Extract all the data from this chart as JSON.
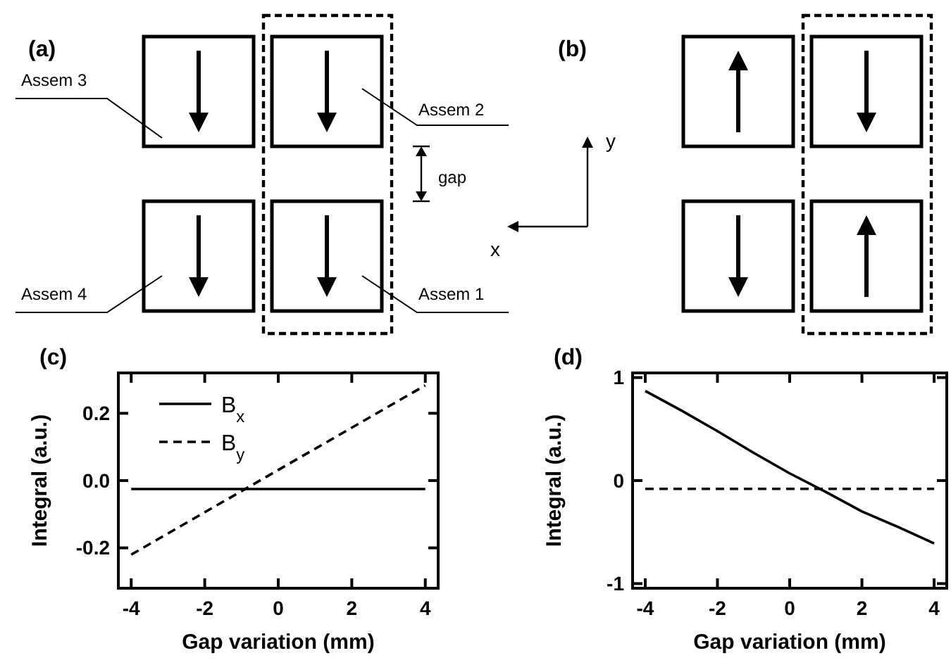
{
  "chart_data": [
    {
      "type": "other",
      "title": "(a)",
      "annotations": [
        "Assem 3",
        "Assem 2",
        "gap",
        "Assem 4",
        "Assem 1"
      ]
    },
    {
      "type": "other",
      "title": "(b)",
      "annotations": [
        "y",
        "x"
      ]
    },
    {
      "type": "line",
      "title": "(c)",
      "xlabel": "Gap variation (mm)",
      "ylabel": "Integral (a.u.)",
      "x": [
        -4,
        4
      ],
      "xlim": [
        -4.35,
        4.35
      ],
      "xticks": [
        -4,
        -2,
        0,
        2,
        4
      ],
      "ylim": [
        -0.32,
        0.32
      ],
      "yticks": [
        -0.2,
        {
          "value": 0,
          "label": "0.0"
        },
        0.2
      ],
      "legend": "top left",
      "series": [
        {
          "name": "B$_{x}$",
          "color": "#000000",
          "line_style": "solid",
          "values": [
            -0.025,
            -0.025
          ]
        },
        {
          "name": "B$_{y}$",
          "color": "#000000",
          "line_style": "dashed",
          "values": [
            -0.22,
            0.283
          ]
        }
      ]
    },
    {
      "type": "line",
      "title": "(d)",
      "xlabel": "Gap variation (mm)",
      "ylabel": "Integral (a.u.)",
      "x": [
        -4,
        -3,
        -2,
        -1,
        0,
        1,
        2,
        3,
        4
      ],
      "xlim": [
        -4.35,
        4.35
      ],
      "xticks": [
        -4,
        -2,
        0,
        2,
        4
      ],
      "ylim": [
        -1.045,
        1.045
      ],
      "yticks": [
        -1,
        0,
        1
      ],
      "series": [
        {
          "color": "#000000",
          "line_style": "solid",
          "values": [
            0.87,
            0.68,
            0.48,
            0.27,
            0.07,
            -0.11,
            -0.3,
            -0.45,
            -0.61
          ]
        },
        {
          "color": "#000000",
          "line_style": "dashed",
          "values": [
            -0.08,
            -0.08,
            -0.08,
            -0.08,
            -0.08,
            -0.08,
            -0.08,
            -0.08,
            -0.08
          ]
        }
      ]
    }
  ]
}
